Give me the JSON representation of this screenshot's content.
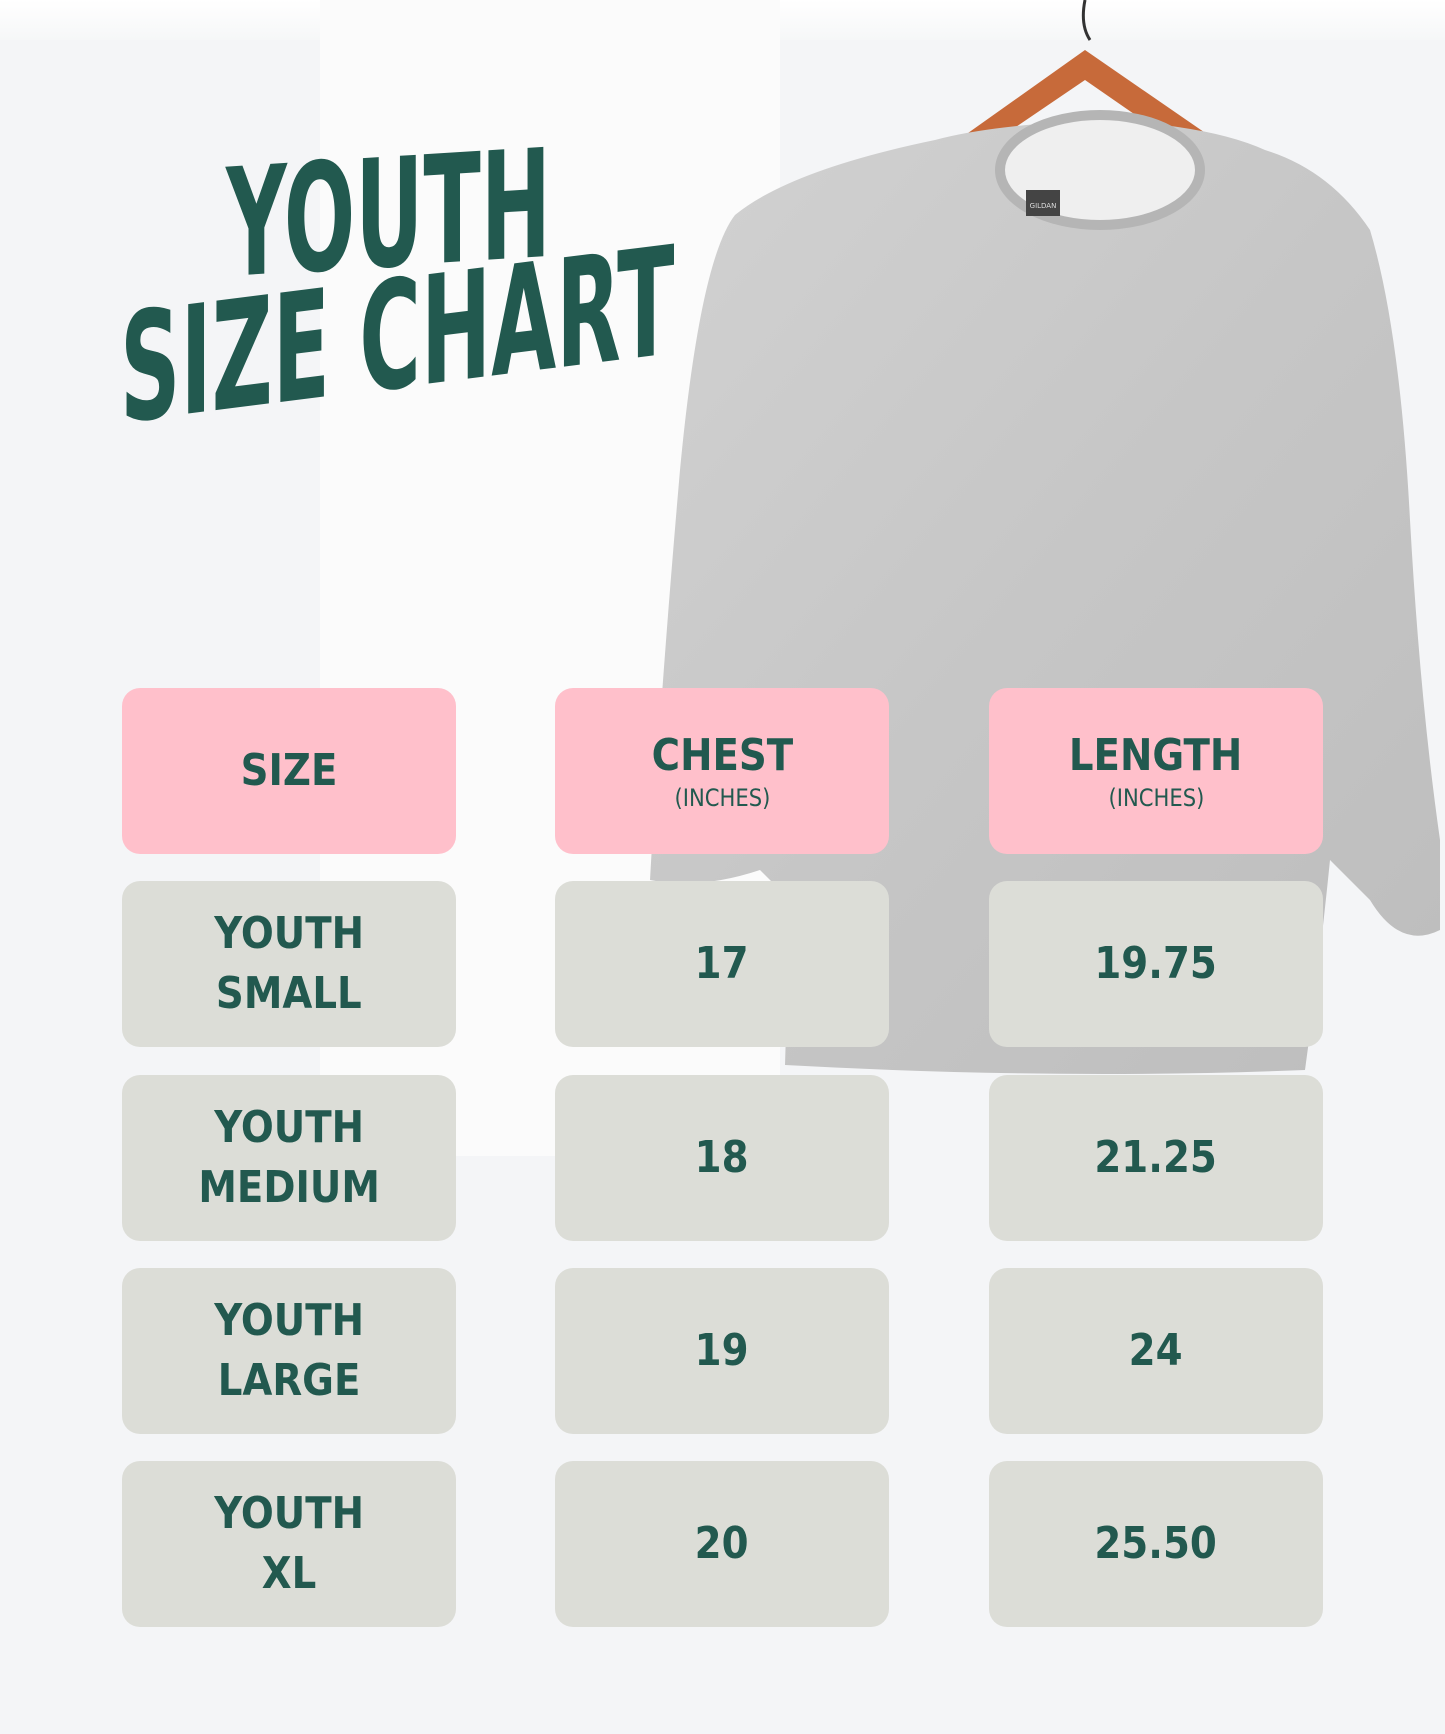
{
  "title": {
    "line1": "YOUTH",
    "line2": "SIZE CHART"
  },
  "colors": {
    "text": "#22594f",
    "header_bg": "#ffc0cb",
    "cell_bg": "#dcddd7",
    "background": "#f4f5f7"
  },
  "photo": {
    "label_tag": "GILDAN"
  },
  "table": {
    "headers": [
      {
        "label": "SIZE",
        "unit": ""
      },
      {
        "label": "CHEST",
        "unit": "(INCHES)"
      },
      {
        "label": "LENGTH",
        "unit": "(INCHES)"
      }
    ],
    "rows": [
      {
        "size_line1": "YOUTH",
        "size_line2": "SMALL",
        "chest": "17",
        "length": "19.75"
      },
      {
        "size_line1": "YOUTH",
        "size_line2": "MEDIUM",
        "chest": "18",
        "length": "21.25"
      },
      {
        "size_line1": "YOUTH",
        "size_line2": "LARGE",
        "chest": "19",
        "length": "24"
      },
      {
        "size_line1": "YOUTH",
        "size_line2": "XL",
        "chest": "20",
        "length": "25.50"
      }
    ]
  }
}
